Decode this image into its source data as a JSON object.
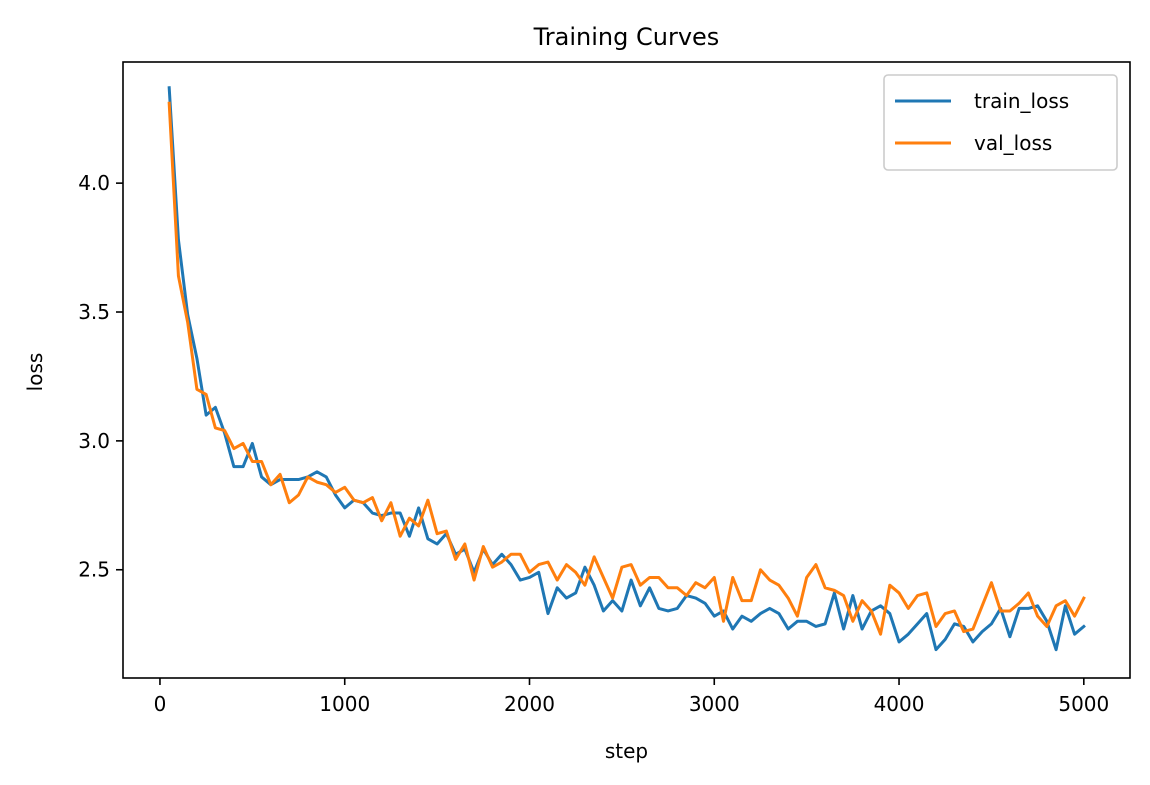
{
  "chart_data": {
    "type": "line",
    "title": "Training Curves",
    "xlabel": "step",
    "ylabel": "loss",
    "xlim": [
      -200,
      5250
    ],
    "ylim": [
      2.08,
      4.47
    ],
    "xticks": [
      0,
      1000,
      2000,
      3000,
      4000,
      5000
    ],
    "yticks": [
      2.5,
      3.0,
      3.5,
      4.0
    ],
    "ytick_labels": [
      "2.5",
      "3.0",
      "3.5",
      "4.0"
    ],
    "legend_position": "upper right",
    "grid": false,
    "x": [
      50,
      100,
      150,
      200,
      250,
      300,
      350,
      400,
      450,
      500,
      550,
      600,
      650,
      700,
      750,
      800,
      850,
      900,
      950,
      1000,
      1050,
      1100,
      1150,
      1200,
      1250,
      1300,
      1350,
      1400,
      1450,
      1500,
      1550,
      1600,
      1650,
      1700,
      1750,
      1800,
      1850,
      1900,
      1950,
      2000,
      2050,
      2100,
      2150,
      2200,
      2250,
      2300,
      2350,
      2400,
      2450,
      2500,
      2550,
      2600,
      2650,
      2700,
      2750,
      2800,
      2850,
      2900,
      2950,
      3000,
      3050,
      3100,
      3150,
      3200,
      3250,
      3300,
      3350,
      3400,
      3450,
      3500,
      3550,
      3600,
      3650,
      3700,
      3750,
      3800,
      3850,
      3900,
      3950,
      4000,
      4050,
      4100,
      4150,
      4200,
      4250,
      4300,
      4350,
      4400,
      4450,
      4500,
      4550,
      4600,
      4650,
      4700,
      4750,
      4800,
      4850,
      4900,
      4950,
      5000
    ],
    "series": [
      {
        "name": "train_loss",
        "color": "#1f77b4",
        "values": [
          4.37,
          3.78,
          3.49,
          3.32,
          3.1,
          3.13,
          3.03,
          2.9,
          2.9,
          2.99,
          2.86,
          2.83,
          2.85,
          2.85,
          2.85,
          2.86,
          2.88,
          2.86,
          2.79,
          2.74,
          2.77,
          2.76,
          2.72,
          2.71,
          2.72,
          2.72,
          2.63,
          2.74,
          2.62,
          2.6,
          2.64,
          2.56,
          2.58,
          2.49,
          2.58,
          2.52,
          2.56,
          2.52,
          2.46,
          2.47,
          2.49,
          2.33,
          2.43,
          2.39,
          2.41,
          2.51,
          2.44,
          2.34,
          2.38,
          2.34,
          2.46,
          2.36,
          2.43,
          2.35,
          2.34,
          2.35,
          2.4,
          2.39,
          2.37,
          2.32,
          2.34,
          2.27,
          2.32,
          2.3,
          2.33,
          2.35,
          2.33,
          2.27,
          2.3,
          2.3,
          2.28,
          2.29,
          2.41,
          2.27,
          2.4,
          2.27,
          2.34,
          2.36,
          2.33,
          2.22,
          2.25,
          2.29,
          2.33,
          2.19,
          2.23,
          2.29,
          2.28,
          2.22,
          2.26,
          2.29,
          2.35,
          2.24,
          2.35,
          2.35,
          2.36,
          2.3,
          2.19,
          2.36,
          2.25,
          2.28
        ]
      },
      {
        "name": "val_loss",
        "color": "#ff7f0e",
        "values": [
          4.31,
          3.64,
          3.46,
          3.2,
          3.18,
          3.05,
          3.04,
          2.97,
          2.99,
          2.92,
          2.92,
          2.83,
          2.87,
          2.76,
          2.79,
          2.86,
          2.84,
          2.83,
          2.8,
          2.82,
          2.77,
          2.76,
          2.78,
          2.69,
          2.76,
          2.63,
          2.7,
          2.67,
          2.77,
          2.64,
          2.65,
          2.54,
          2.6,
          2.46,
          2.59,
          2.51,
          2.53,
          2.56,
          2.56,
          2.49,
          2.52,
          2.53,
          2.46,
          2.52,
          2.49,
          2.44,
          2.55,
          2.47,
          2.39,
          2.51,
          2.52,
          2.44,
          2.47,
          2.47,
          2.43,
          2.43,
          2.4,
          2.45,
          2.43,
          2.47,
          2.3,
          2.47,
          2.38,
          2.38,
          2.5,
          2.46,
          2.44,
          2.39,
          2.32,
          2.47,
          2.52,
          2.43,
          2.42,
          2.4,
          2.3,
          2.38,
          2.34,
          2.25,
          2.44,
          2.41,
          2.35,
          2.4,
          2.41,
          2.28,
          2.33,
          2.34,
          2.26,
          2.27,
          2.36,
          2.45,
          2.34,
          2.34,
          2.37,
          2.41,
          2.32,
          2.28,
          2.36,
          2.38,
          2.32,
          2.39
        ]
      }
    ]
  }
}
